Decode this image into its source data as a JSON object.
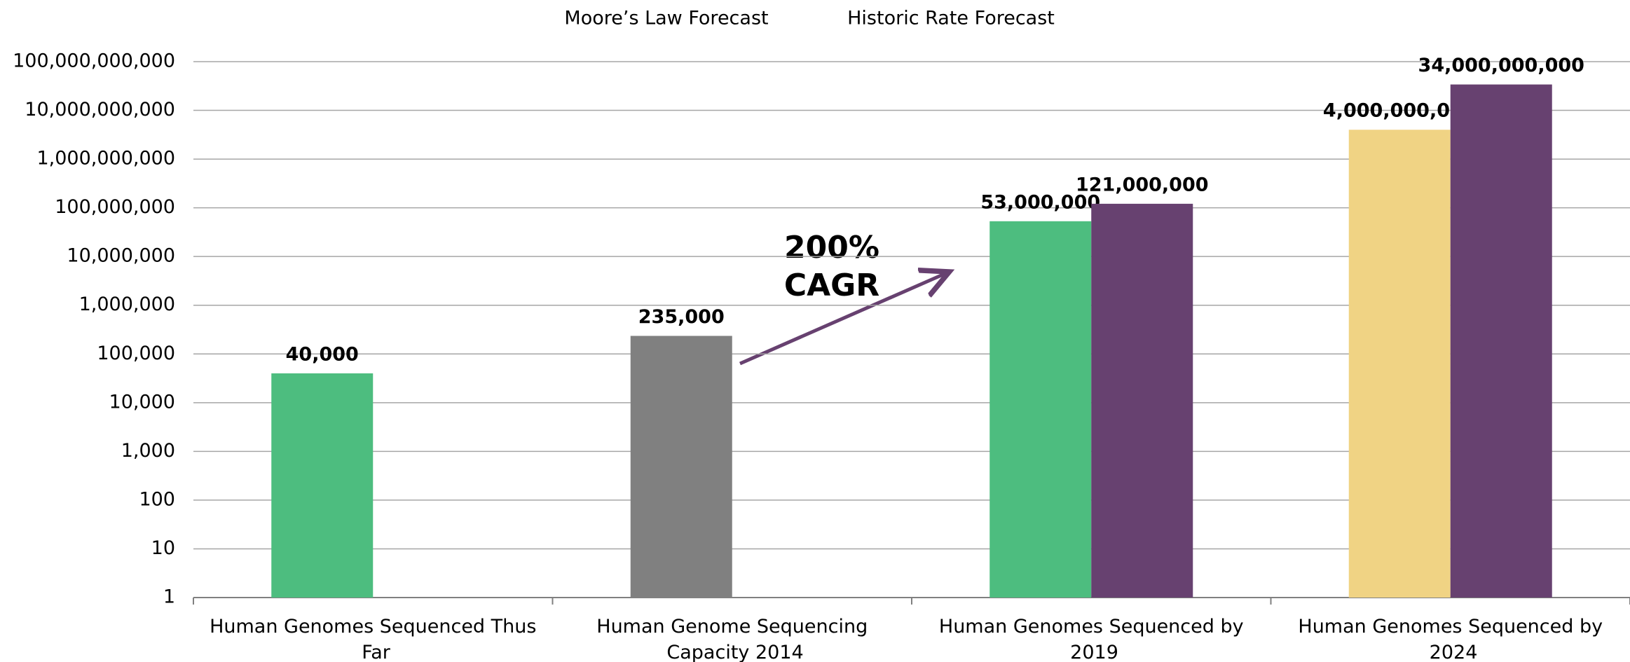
{
  "chart_data": {
    "type": "bar",
    "log_scale": true,
    "grid": true,
    "legend": "top",
    "categories": [
      "Human Genomes Sequenced Thus Far",
      "Human Genome Sequencing Capacity 2014",
      "Human Genomes Sequenced by 2019",
      "Human Genomes Sequenced by 2024"
    ],
    "series": [
      {
        "name": "Moore’s Law Forecast",
        "colors": [
          "#4dbd7f",
          "#808080",
          "#4dbd7f",
          "#f0d384"
        ],
        "values": [
          40000,
          235000,
          53000000,
          4000000000
        ],
        "value_labels": [
          "40,000",
          "235,000",
          "53,000,000",
          "4,000,000,000"
        ]
      },
      {
        "name": "Historic Rate Forecast",
        "color": "#674170",
        "values": [
          null,
          null,
          121000000,
          34000000000
        ],
        "value_labels": [
          null,
          null,
          "121,000,000",
          "34,000,000,000"
        ]
      }
    ],
    "ylim": [
      1,
      100000000000
    ],
    "yticks": [
      1,
      10,
      100,
      {
        "value": 1000,
        "label": "1,000"
      },
      {
        "value": 10000,
        "label": "10,000"
      },
      {
        "value": 100000,
        "label": "100,000"
      },
      {
        "value": 1000000,
        "label": "1,000,000"
      },
      {
        "value": 10000000,
        "label": "10,000,000"
      },
      {
        "value": 100000000,
        "label": "100,000,000"
      },
      {
        "value": 1000000000,
        "label": "1,000,000,000"
      },
      {
        "value": 10000000000,
        "label": "10,000,000,000"
      },
      {
        "value": 100000000000,
        "label": "100,000,000,000"
      }
    ],
    "annotation": [
      "200%",
      "CAGR"
    ]
  }
}
